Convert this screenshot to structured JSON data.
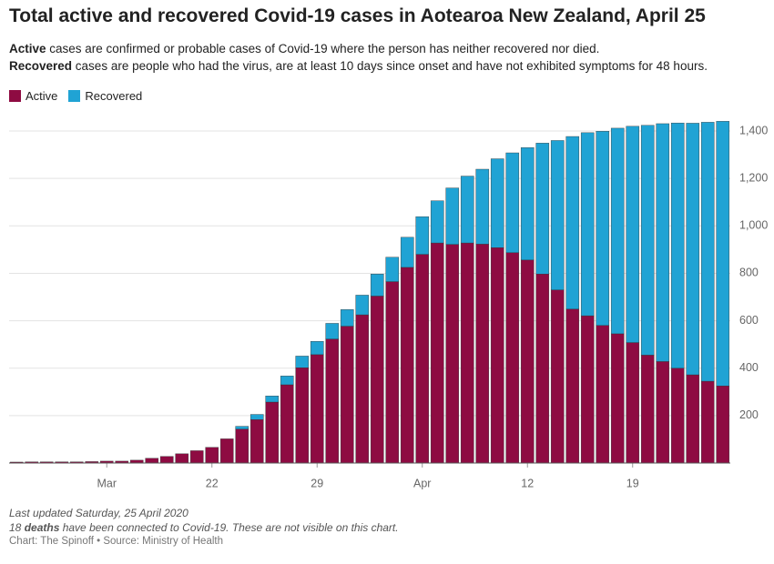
{
  "chart_data": {
    "type": "stacked_bar",
    "title": "Total active and recovered Covid-19 cases in Aotearoa New Zealand, April 25",
    "subtitle": [
      {
        "bold": "Active",
        "text": " cases are confirmed or probable cases of Covid-19 where the person has neither recovered nor died."
      },
      {
        "bold": "Recovered",
        "text": " cases are people who had the virus, are at least 10 days since onset and have not exhibited symptoms for 48 hours."
      }
    ],
    "notes": [
      {
        "text": "Last updated Saturday, 25 April 2020"
      },
      {
        "before": "18 ",
        "bold": "deaths",
        "after": " have been connected to Covid-19. These are not visible on this chart."
      }
    ],
    "source": "Chart: The Spinoff • Source: Ministry of Health",
    "categories": [
      null,
      null,
      null,
      null,
      null,
      null,
      "Mar",
      null,
      null,
      null,
      null,
      null,
      null,
      "22",
      null,
      null,
      null,
      null,
      null,
      null,
      "29",
      null,
      null,
      null,
      null,
      null,
      null,
      "Apr",
      null,
      null,
      null,
      null,
      null,
      null,
      "12",
      null,
      null,
      null,
      null,
      null,
      null,
      "19",
      null,
      null,
      null,
      null,
      null,
      null
    ],
    "series": [
      {
        "name": "Active",
        "color": "#8e0b42",
        "values": [
          4,
          5,
          5,
          5,
          5,
          6,
          8,
          8,
          12,
          20,
          28,
          39,
          52,
          66,
          102,
          143,
          183,
          257,
          330,
          402,
          457,
          523,
          577,
          625,
          704,
          765,
          825,
          880,
          928,
          922,
          928,
          923,
          908,
          887,
          856,
          797,
          730,
          649,
          621,
          580,
          545,
          508,
          455,
          428,
          400,
          372,
          345,
          325
        ]
      },
      {
        "name": "Recovered",
        "color": "#20a3d4",
        "values": [
          0,
          0,
          0,
          0,
          0,
          0,
          0,
          0,
          0,
          0,
          0,
          0,
          0,
          0,
          0,
          12,
          22,
          26,
          37,
          49,
          56,
          66,
          70,
          83,
          93,
          103,
          127,
          159,
          178,
          238,
          282,
          316,
          375,
          421,
          474,
          552,
          630,
          728,
          772,
          819,
          867,
          912,
          969,
          1003,
          1034,
          1061,
          1092,
          1116
        ]
      }
    ],
    "ylim": [
      0,
      1450
    ],
    "yticks": [
      200,
      400,
      600,
      800,
      {
        "value": 1000,
        "label": "1,000"
      },
      {
        "value": 1200,
        "label": "1,200"
      },
      {
        "value": 1400,
        "label": "1,400"
      }
    ],
    "grid": true,
    "legend": "top-left"
  }
}
